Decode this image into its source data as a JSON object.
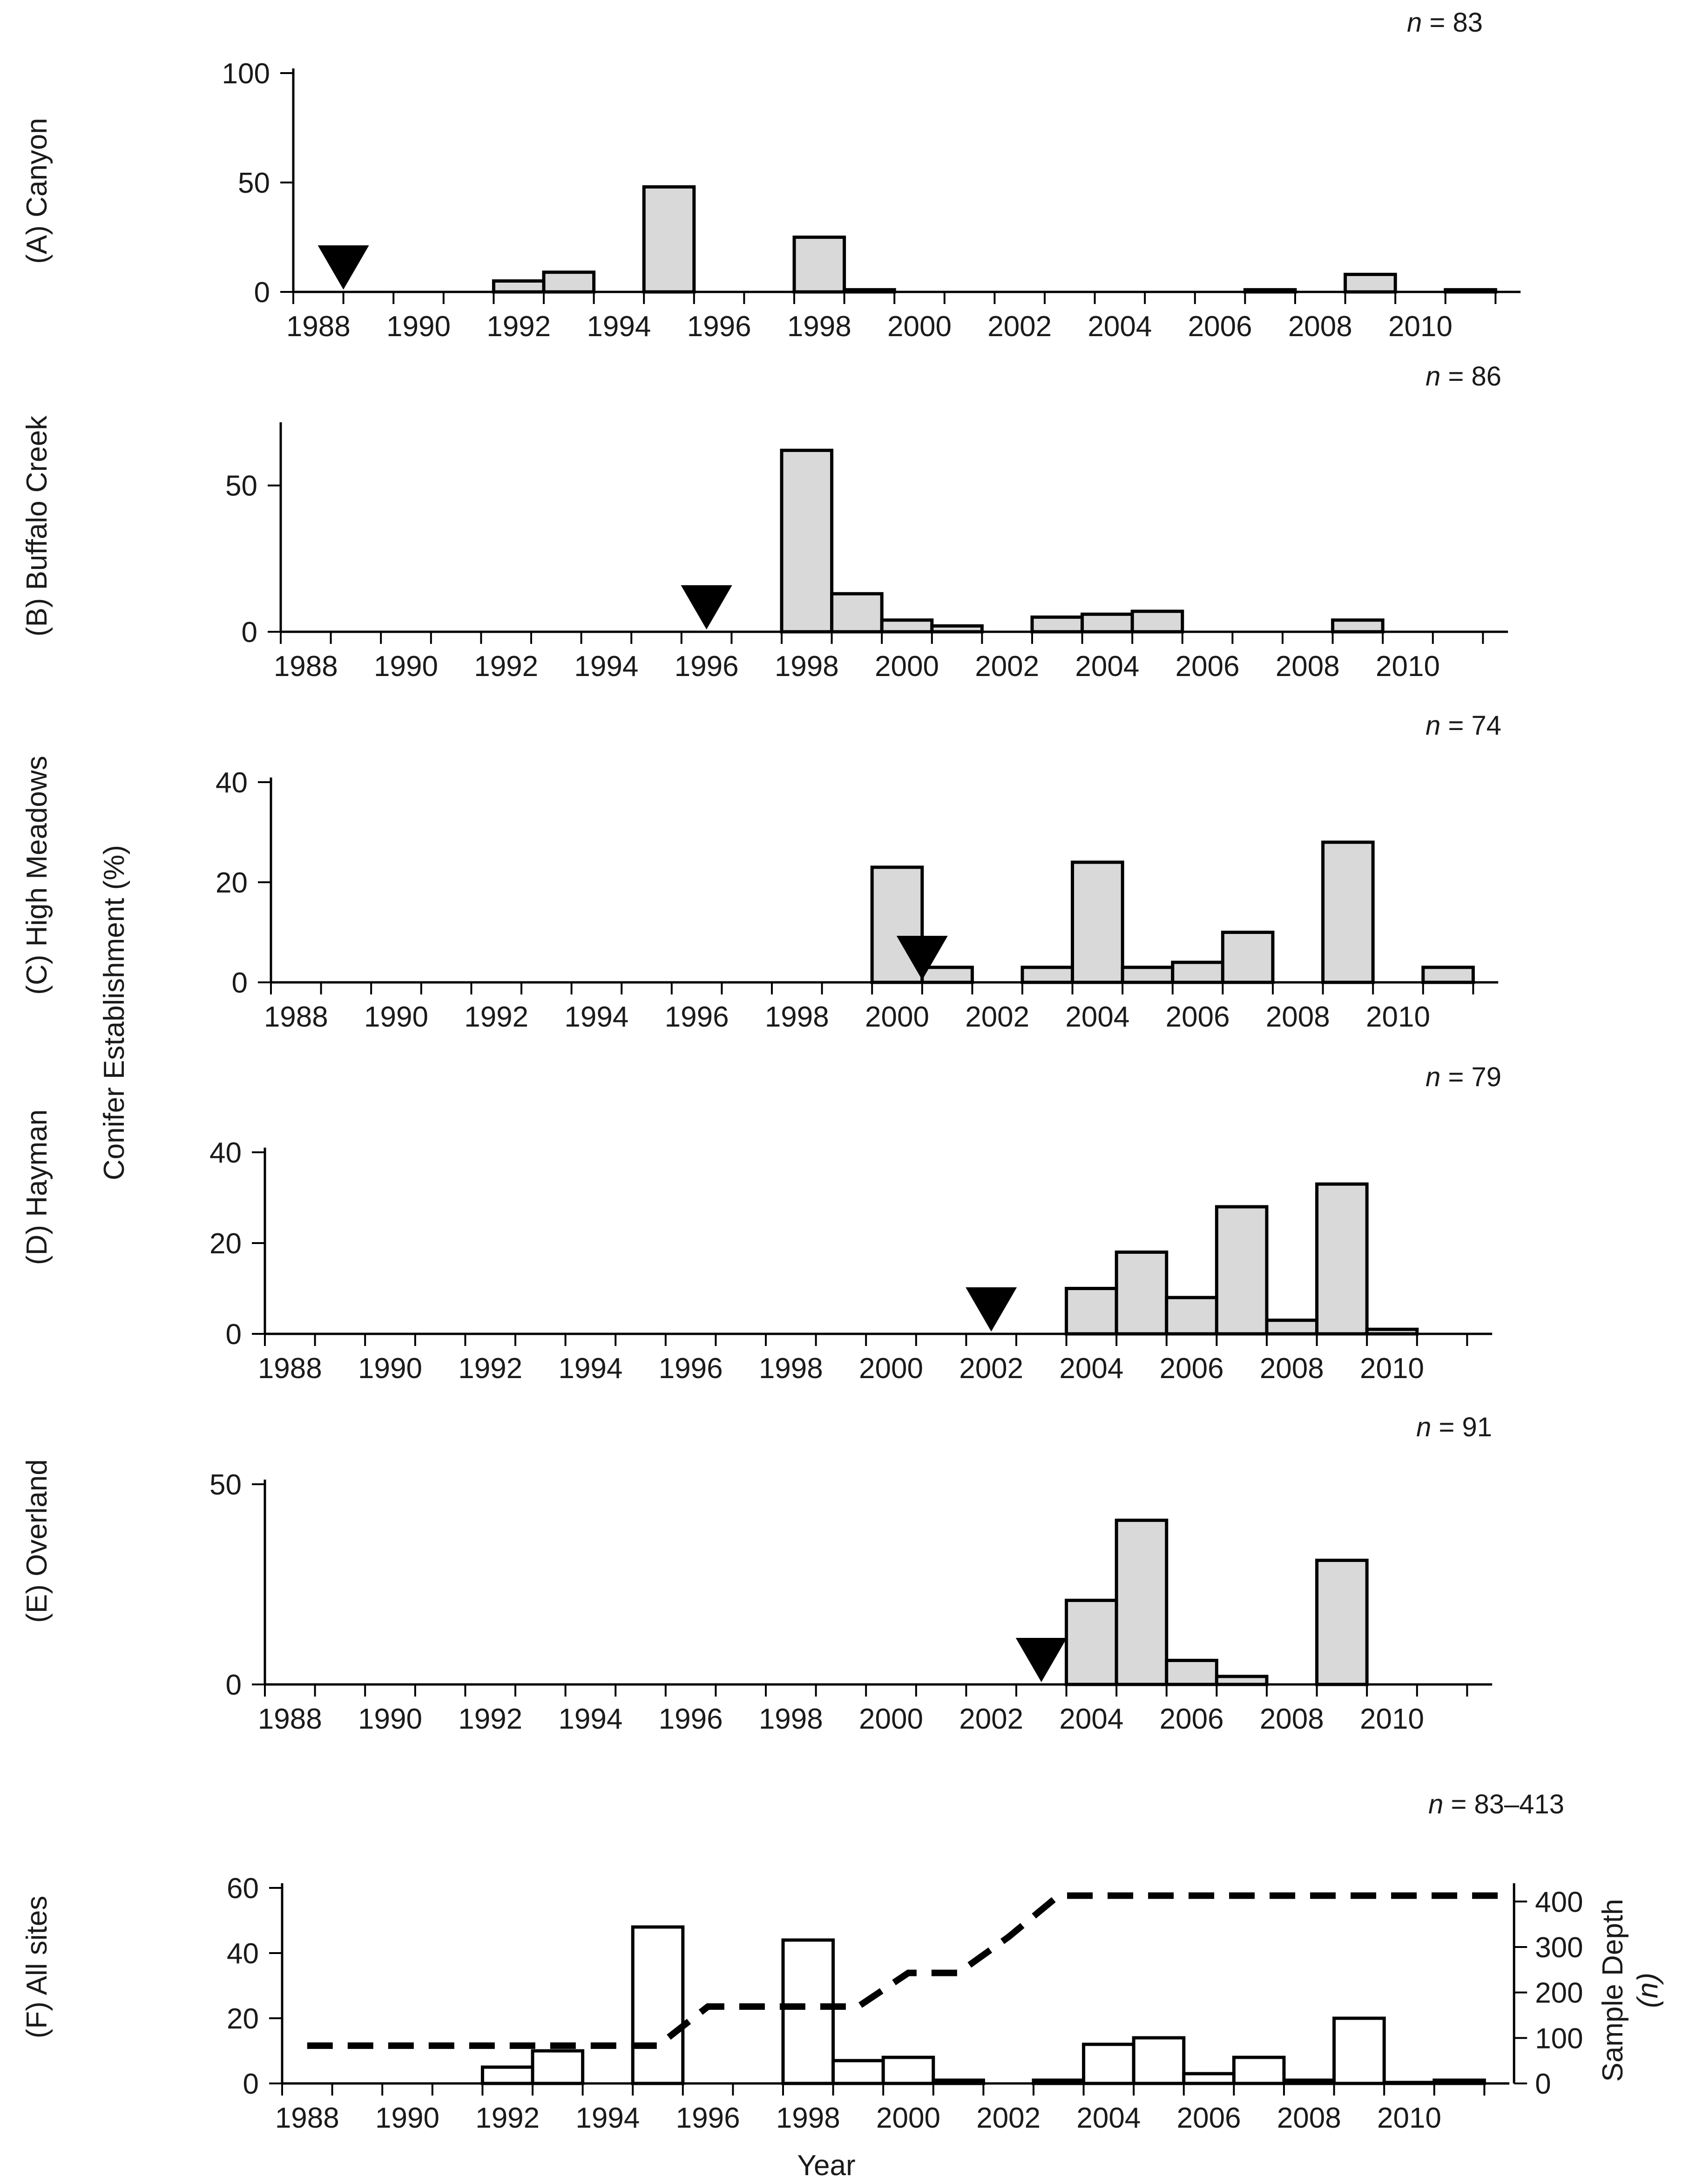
{
  "figure": {
    "shared_ylabel": "Conifer Establishment (%)",
    "xlabel": "Year",
    "x_ticks": [
      "1988",
      "1990",
      "1992",
      "1994",
      "1996",
      "1998",
      "2000",
      "2002",
      "2004",
      "2006",
      "2008",
      "2010"
    ],
    "colors": {
      "bar_fill": "#d9d9d9",
      "bar_stroke": "#000000",
      "open_bar_fill": "#ffffff",
      "axis": "#000000",
      "marker": "#000000"
    }
  },
  "chart_data": [
    {
      "type": "bar",
      "id": "A",
      "title": "(A)   Canyon",
      "n_label": {
        "sym": "n",
        "text": " = 83"
      },
      "ylim": [
        0,
        100
      ],
      "yticks": [
        0,
        50,
        100
      ],
      "x": [
        1992,
        1993,
        1995,
        1998,
        1999,
        2007,
        2009,
        2011
      ],
      "values": [
        5,
        9,
        48,
        25,
        1,
        1,
        8,
        1
      ],
      "fire_year": 1988.5
    },
    {
      "type": "bar",
      "id": "B",
      "title": "(B)   Buffalo Creek",
      "n_label": {
        "sym": "n",
        "text": " = 86"
      },
      "ylim": [
        0,
        70
      ],
      "yticks": [
        0,
        50
      ],
      "x": [
        1998,
        1999,
        2000,
        2001,
        2003,
        2004,
        2005,
        2009
      ],
      "values": [
        62,
        13,
        4,
        2,
        5,
        6,
        7,
        4
      ],
      "fire_year": 1996
    },
    {
      "type": "bar",
      "id": "C",
      "title": "(C) High Meadows",
      "n_label": {
        "sym": "n",
        "text": " = 74"
      },
      "ylim": [
        0,
        40
      ],
      "yticks": [
        0,
        20,
        40
      ],
      "x": [
        2000,
        2001,
        2003,
        2004,
        2005,
        2006,
        2007,
        2009,
        2011
      ],
      "values": [
        23,
        3,
        3,
        24,
        3,
        4,
        10,
        28,
        3
      ],
      "fire_year": 2000.5
    },
    {
      "type": "bar",
      "id": "D",
      "title": "(D)   Hayman",
      "n_label": {
        "sym": "n",
        "text": " = 79"
      },
      "ylim": [
        0,
        40
      ],
      "yticks": [
        0,
        20,
        40
      ],
      "x": [
        2004,
        2005,
        2006,
        2007,
        2008,
        2009,
        2010
      ],
      "values": [
        10,
        18,
        8,
        28,
        3,
        33,
        1
      ],
      "fire_year": 2002
    },
    {
      "type": "bar",
      "id": "E",
      "title": "(E)   Overland",
      "n_label": {
        "sym": "n",
        "text": " = 91"
      },
      "ylim": [
        0,
        50
      ],
      "yticks": [
        0,
        50
      ],
      "x": [
        2004,
        2005,
        2006,
        2007,
        2009
      ],
      "values": [
        21,
        41,
        6,
        2,
        31
      ],
      "fire_year": 2003
    },
    {
      "type": "bar+line",
      "id": "F",
      "title": "(F)   All sites",
      "n_label": {
        "sym": "n",
        "text": " = 83–413"
      },
      "ylim": [
        0,
        60
      ],
      "yticks": [
        0,
        20,
        40,
        60
      ],
      "x": [
        1992,
        1993,
        1995,
        1998,
        1999,
        2000,
        2001,
        2003,
        2004,
        2005,
        2006,
        2007,
        2008,
        2009,
        2010,
        2011
      ],
      "values": [
        5,
        10,
        48,
        44,
        7,
        8,
        1,
        1,
        12,
        14,
        3,
        8,
        1,
        20,
        0.3,
        1
      ],
      "y2label": "Sample Depth",
      "y2label_sym": "(n)",
      "y2lim": [
        0,
        430
      ],
      "y2ticks": [
        0,
        100,
        200,
        300,
        400
      ],
      "sample_depth": {
        "x": [
          1988,
          1995,
          1996,
          1997,
          1998,
          1999,
          2000,
          2001,
          2002,
          2003,
          2012
        ],
        "values": [
          83,
          83,
          169,
          169,
          169,
          169,
          243,
          243,
          322,
          413,
          413
        ]
      }
    }
  ]
}
